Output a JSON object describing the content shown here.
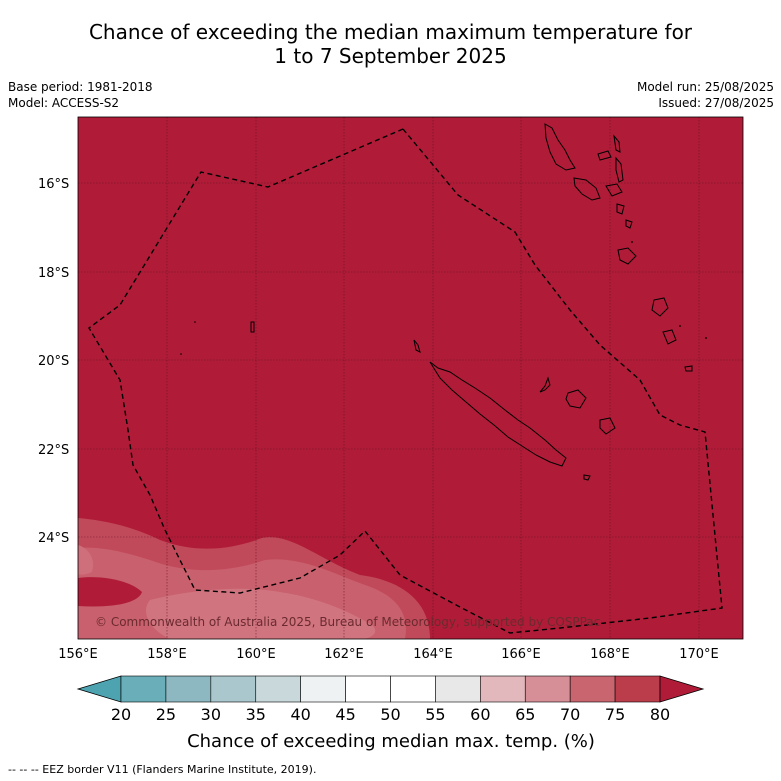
{
  "title_line1": "Chance of exceeding the median maximum temperature for",
  "title_line2": "1 to 7 September 2025",
  "base_period": "Base period: 1981-2018",
  "model": "Model: ACCESS-S2",
  "model_run": "Model run: 25/08/2025",
  "issued": "Issued: 27/08/2025",
  "lat_labels": [
    "16°S",
    "18°S",
    "20°S",
    "22°S",
    "24°S"
  ],
  "lon_labels": [
    "156°E",
    "158°E",
    "160°E",
    "162°E",
    "164°E",
    "166°E",
    "168°E",
    "170°E"
  ],
  "copyright": "© Commonwealth of Australia 2025, Bureau of Meteorology, supported by COSPPac",
  "colorbar": {
    "labels": [
      "20",
      "25",
      "30",
      "35",
      "40",
      "45",
      "50",
      "55",
      "60",
      "65",
      "70",
      "75",
      "80"
    ],
    "colors": [
      "#4da3b0",
      "#6aaeb9",
      "#8db8c1",
      "#a9c7cc",
      "#c8d8db",
      "#eef2f3",
      "#ffffff",
      "#ffffff",
      "#e8e8e8",
      "#e2b8bd",
      "#d68f97",
      "#c9656f",
      "#bb3d4b"
    ],
    "low_color": "#4da3b0",
    "high_color": "#b01c38",
    "title": "Chance of exceeding median max. temp. (%)"
  },
  "map_fill": "#b01c38",
  "footnote": "--  --  -- EEZ border V11 (Flanders Marine Institute, 2019)."
}
